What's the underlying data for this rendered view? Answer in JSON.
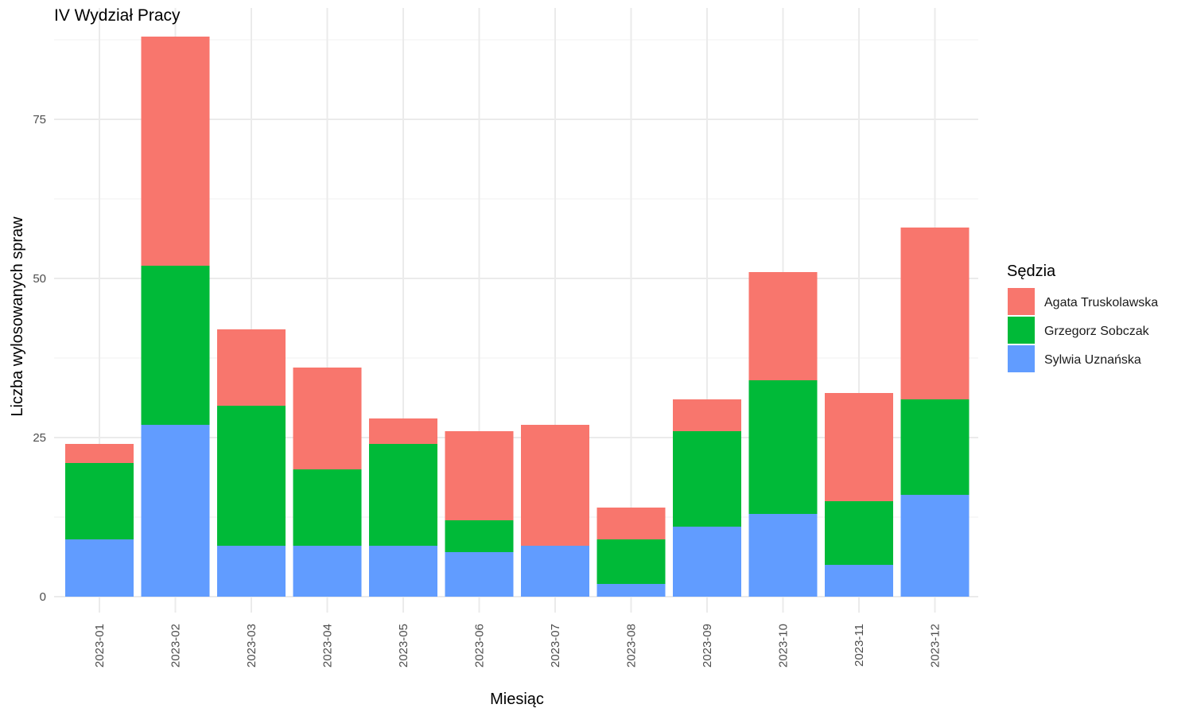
{
  "chart_data": {
    "type": "bar",
    "stacked": true,
    "title": "IV Wydział Pracy",
    "xlabel": "Miesiąc",
    "ylabel": "Liczba wylosowanych spraw",
    "ylim": [
      0,
      90
    ],
    "yticks": [
      0,
      25,
      50,
      75
    ],
    "grid": true,
    "legend_title": "Sędzia",
    "legend_position": "right",
    "categories": [
      "2023-01",
      "2023-02",
      "2023-03",
      "2023-04",
      "2023-05",
      "2023-06",
      "2023-07",
      "2023-08",
      "2023-09",
      "2023-10",
      "2023-11",
      "2023-12"
    ],
    "series": [
      {
        "name": "Sylwia Uznańska",
        "color": "#619CFF",
        "values": [
          9,
          27,
          8,
          8,
          8,
          7,
          8,
          2,
          11,
          13,
          5,
          16
        ]
      },
      {
        "name": "Grzegorz Sobczak",
        "color": "#00BA38",
        "values": [
          12,
          25,
          22,
          12,
          16,
          5,
          0,
          7,
          15,
          21,
          10,
          15
        ]
      },
      {
        "name": "Agata Truskolawska",
        "color": "#F8766D",
        "values": [
          3,
          36,
          12,
          16,
          4,
          14,
          19,
          5,
          5,
          17,
          17,
          27
        ]
      }
    ],
    "legend_order": [
      "Agata Truskolawska",
      "Grzegorz Sobczak",
      "Sylwia Uznańska"
    ]
  }
}
